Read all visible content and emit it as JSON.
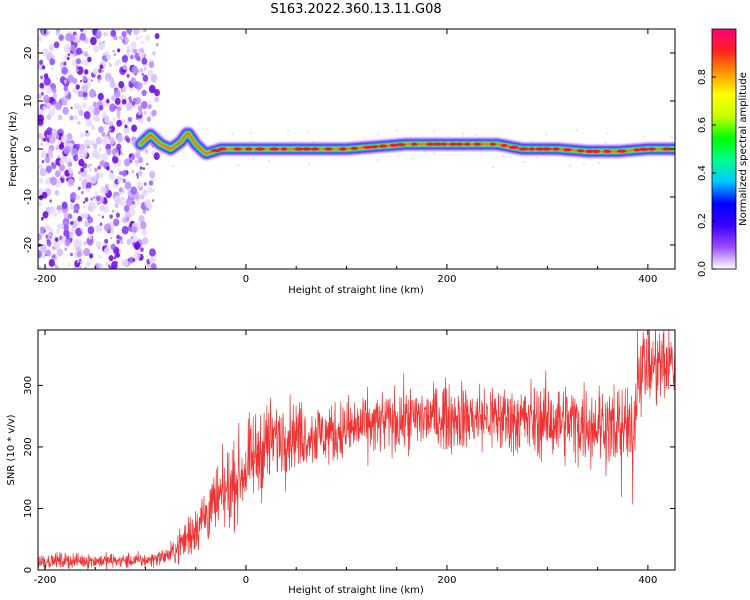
{
  "title": "S163.2022.360.13.11.G08",
  "chart_data": [
    {
      "id": "spectrogram",
      "type": "heatmap",
      "xlabel": "Height of straight line (km)",
      "ylabel": "Frequency (Hz)",
      "xlim": [
        -207,
        427
      ],
      "ylim": [
        -25,
        25
      ],
      "x_ticks": [
        -200,
        0,
        200,
        400
      ],
      "y_ticks": [
        -20,
        -10,
        0,
        10,
        20
      ],
      "colorbar": {
        "label": "Normalized spectral amplitude",
        "range": [
          0,
          1
        ],
        "ticks": [
          0.0,
          0.2,
          0.4,
          0.6,
          0.8
        ],
        "colors": [
          "#ffffff",
          "#9b4dff",
          "#3a00ff",
          "#0000ff",
          "#00c8ff",
          "#00ff90",
          "#00ff00",
          "#c8ff00",
          "#ffff00",
          "#ff9600",
          "#ff2020",
          "#ff0078"
        ]
      },
      "noise_region_x": [
        -207,
        -100
      ],
      "signal_ridge": [
        {
          "x": -105,
          "f": 1.0
        },
        {
          "x": -95,
          "f": 3.0
        },
        {
          "x": -85,
          "f": 1.0
        },
        {
          "x": -75,
          "f": 0.0
        },
        {
          "x": -65,
          "f": 1.5
        },
        {
          "x": -58,
          "f": 3.5
        },
        {
          "x": -50,
          "f": 1.0
        },
        {
          "x": -40,
          "f": -1.0
        },
        {
          "x": -25,
          "f": 0.0
        },
        {
          "x": 0,
          "f": 0.0
        },
        {
          "x": 50,
          "f": 0.0
        },
        {
          "x": 100,
          "f": 0.0
        },
        {
          "x": 130,
          "f": 0.5
        },
        {
          "x": 160,
          "f": 1.0
        },
        {
          "x": 200,
          "f": 1.0
        },
        {
          "x": 250,
          "f": 1.0
        },
        {
          "x": 275,
          "f": 0.0
        },
        {
          "x": 310,
          "f": 0.0
        },
        {
          "x": 340,
          "f": -0.5
        },
        {
          "x": 370,
          "f": -0.5
        },
        {
          "x": 400,
          "f": 0.0
        },
        {
          "x": 427,
          "f": 0.0
        }
      ]
    },
    {
      "id": "snr",
      "type": "line",
      "xlabel": "Height of straight line (km)",
      "ylabel": "SNR (10 * v/v)",
      "xlim": [
        -207,
        427
      ],
      "ylim": [
        0,
        390
      ],
      "x_ticks": [
        -200,
        0,
        200,
        400
      ],
      "y_ticks": [
        0,
        100,
        200,
        300
      ],
      "color": "#ee3333",
      "trend": [
        {
          "x": -207,
          "y": 15
        },
        {
          "x": -100,
          "y": 15
        },
        {
          "x": -75,
          "y": 25
        },
        {
          "x": -60,
          "y": 50
        },
        {
          "x": -40,
          "y": 90
        },
        {
          "x": -20,
          "y": 125
        },
        {
          "x": 0,
          "y": 165
        },
        {
          "x": 20,
          "y": 205
        },
        {
          "x": 40,
          "y": 220
        },
        {
          "x": 80,
          "y": 220
        },
        {
          "x": 120,
          "y": 235
        },
        {
          "x": 160,
          "y": 245
        },
        {
          "x": 200,
          "y": 250
        },
        {
          "x": 260,
          "y": 245
        },
        {
          "x": 320,
          "y": 240
        },
        {
          "x": 380,
          "y": 235
        },
        {
          "x": 385,
          "y": 200
        },
        {
          "x": 390,
          "y": 330
        },
        {
          "x": 427,
          "y": 335
        }
      ],
      "spread": [
        {
          "x": -207,
          "y": 6
        },
        {
          "x": -80,
          "y": 6
        },
        {
          "x": -60,
          "y": 18
        },
        {
          "x": -20,
          "y": 30
        },
        {
          "x": 20,
          "y": 35
        },
        {
          "x": 60,
          "y": 25
        },
        {
          "x": 160,
          "y": 25
        },
        {
          "x": 300,
          "y": 30
        },
        {
          "x": 380,
          "y": 35
        },
        {
          "x": 427,
          "y": 35
        }
      ]
    }
  ]
}
